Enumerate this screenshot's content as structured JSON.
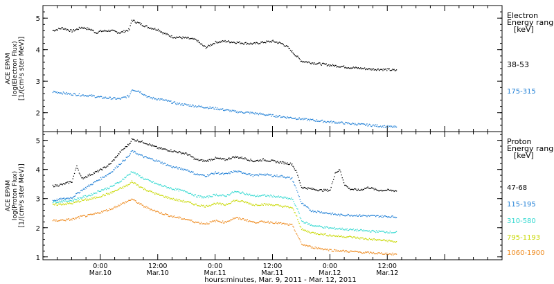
{
  "chart_data": [
    {
      "type": "line",
      "panel": "electron",
      "ylabel": [
        "ACE EPAM",
        "log(Electron Flux)",
        "[1/(cm²s ster MeV)]"
      ],
      "ylim": [
        1.4,
        5.4
      ],
      "yticks": [
        2,
        3,
        4,
        5
      ],
      "legend_title": [
        "Electron",
        "Energy range",
        "[keV]"
      ],
      "series": [
        {
          "name": "38-53",
          "color": "#000000",
          "points": [
            [
              -10,
              4.62
            ],
            [
              -8,
              4.7
            ],
            [
              -6,
              4.6
            ],
            [
              -4,
              4.72
            ],
            [
              -2,
              4.65
            ],
            [
              -1,
              4.55
            ],
            [
              0,
              4.6
            ],
            [
              2,
              4.62
            ],
            [
              4,
              4.55
            ],
            [
              6,
              4.65
            ],
            [
              6.5,
              4.95
            ],
            [
              8,
              4.85
            ],
            [
              10,
              4.72
            ],
            [
              12,
              4.65
            ],
            [
              13,
              4.55
            ],
            [
              15,
              4.42
            ],
            [
              18,
              4.38
            ],
            [
              20,
              4.32
            ],
            [
              21,
              4.18
            ],
            [
              22,
              4.08
            ],
            [
              24,
              4.25
            ],
            [
              26,
              4.28
            ],
            [
              28,
              4.25
            ],
            [
              30,
              4.22
            ],
            [
              32,
              4.2
            ],
            [
              34,
              4.25
            ],
            [
              36,
              4.28
            ],
            [
              38,
              4.2
            ],
            [
              39,
              4.1
            ],
            [
              40,
              3.95
            ],
            [
              42,
              3.65
            ],
            [
              44,
              3.6
            ],
            [
              48,
              3.52
            ],
            [
              52,
              3.45
            ],
            [
              56,
              3.4
            ],
            [
              60,
              3.38
            ],
            [
              62,
              3.35
            ]
          ]
        },
        {
          "name": "175-315",
          "color": "#1f7fd6",
          "points": [
            [
              -10,
              2.68
            ],
            [
              -6,
              2.6
            ],
            [
              -2,
              2.55
            ],
            [
              0,
              2.5
            ],
            [
              4,
              2.45
            ],
            [
              6,
              2.55
            ],
            [
              6.5,
              2.75
            ],
            [
              8,
              2.7
            ],
            [
              10,
              2.5
            ],
            [
              13,
              2.42
            ],
            [
              16,
              2.3
            ],
            [
              20,
              2.22
            ],
            [
              24,
              2.15
            ],
            [
              28,
              2.05
            ],
            [
              32,
              2.0
            ],
            [
              36,
              1.92
            ],
            [
              40,
              1.85
            ],
            [
              44,
              1.78
            ],
            [
              48,
              1.72
            ],
            [
              52,
              1.67
            ],
            [
              56,
              1.62
            ],
            [
              60,
              1.57
            ],
            [
              62,
              1.55
            ]
          ]
        }
      ]
    },
    {
      "type": "line",
      "panel": "proton",
      "ylabel": [
        "ACE EPAM",
        "log(Proton Flux)",
        "[1/(cm²s ster MeV)]"
      ],
      "ylim": [
        0.9,
        5.3
      ],
      "yticks": [
        1,
        2,
        3,
        4,
        5
      ],
      "legend_title": [
        "Proton",
        "Energy range",
        "[keV]"
      ],
      "xlabel": "hours:minutes, Mar. 9, 2011 - Mar. 12, 2011",
      "x_range_hours": [
        -12,
        84
      ],
      "xticks": [
        {
          "h": 0,
          "time": "0:00",
          "date": "Mar.10"
        },
        {
          "h": 12,
          "time": "12:00",
          "date": "Mar.10"
        },
        {
          "h": 24,
          "time": "0:00",
          "date": "Mar.11"
        },
        {
          "h": 36,
          "time": "12:00",
          "date": "Mar.11"
        },
        {
          "h": 48,
          "time": "0:00",
          "date": "Mar.12"
        },
        {
          "h": 60,
          "time": "12:00",
          "date": "Mar.12"
        }
      ],
      "series": [
        {
          "name": "47-68",
          "color": "#000000",
          "points": [
            [
              -10,
              3.45
            ],
            [
              -8,
              3.5
            ],
            [
              -6,
              3.6
            ],
            [
              -5,
              4.15
            ],
            [
              -4,
              3.7
            ],
            [
              -2,
              3.85
            ],
            [
              0,
              4.0
            ],
            [
              2,
              4.2
            ],
            [
              4,
              4.6
            ],
            [
              6,
              4.9
            ],
            [
              6.5,
              5.05
            ],
            [
              9,
              4.95
            ],
            [
              12,
              4.75
            ],
            [
              15,
              4.65
            ],
            [
              18,
              4.55
            ],
            [
              20,
              4.35
            ],
            [
              22,
              4.3
            ],
            [
              24,
              4.4
            ],
            [
              26,
              4.35
            ],
            [
              28,
              4.45
            ],
            [
              30,
              4.4
            ],
            [
              32,
              4.3
            ],
            [
              34,
              4.35
            ],
            [
              36,
              4.3
            ],
            [
              38,
              4.25
            ],
            [
              40,
              4.2
            ],
            [
              41,
              3.9
            ],
            [
              42,
              3.4
            ],
            [
              44,
              3.35
            ],
            [
              46,
              3.3
            ],
            [
              48,
              3.3
            ],
            [
              49,
              3.9
            ],
            [
              50,
              4.0
            ],
            [
              51,
              3.5
            ],
            [
              52,
              3.35
            ],
            [
              54,
              3.3
            ],
            [
              56,
              3.4
            ],
            [
              58,
              3.3
            ],
            [
              60,
              3.3
            ],
            [
              62,
              3.28
            ]
          ]
        },
        {
          "name": "115-195",
          "color": "#1f7fd6",
          "points": [
            [
              -10,
              2.95
            ],
            [
              -6,
              3.05
            ],
            [
              -4,
              3.3
            ],
            [
              -2,
              3.5
            ],
            [
              0,
              3.7
            ],
            [
              2,
              3.9
            ],
            [
              4,
              4.2
            ],
            [
              6,
              4.5
            ],
            [
              6.5,
              4.65
            ],
            [
              9,
              4.45
            ],
            [
              12,
              4.3
            ],
            [
              15,
              4.1
            ],
            [
              18,
              4.0
            ],
            [
              20,
              3.85
            ],
            [
              22,
              3.8
            ],
            [
              24,
              3.9
            ],
            [
              26,
              3.85
            ],
            [
              28,
              3.95
            ],
            [
              30,
              3.9
            ],
            [
              32,
              3.8
            ],
            [
              34,
              3.85
            ],
            [
              36,
              3.8
            ],
            [
              38,
              3.78
            ],
            [
              40,
              3.7
            ],
            [
              41,
              3.3
            ],
            [
              42,
              2.85
            ],
            [
              44,
              2.6
            ],
            [
              46,
              2.55
            ],
            [
              48,
              2.5
            ],
            [
              50,
              2.45
            ],
            [
              52,
              2.45
            ],
            [
              56,
              2.42
            ],
            [
              60,
              2.4
            ],
            [
              62,
              2.38
            ]
          ]
        },
        {
          "name": "310-580",
          "color": "#30d8d0",
          "points": [
            [
              -10,
              2.9
            ],
            [
              -6,
              2.95
            ],
            [
              -4,
              3.05
            ],
            [
              -2,
              3.15
            ],
            [
              0,
              3.3
            ],
            [
              2,
              3.4
            ],
            [
              4,
              3.6
            ],
            [
              6,
              3.85
            ],
            [
              6.5,
              3.95
            ],
            [
              9,
              3.7
            ],
            [
              12,
              3.5
            ],
            [
              15,
              3.35
            ],
            [
              18,
              3.25
            ],
            [
              20,
              3.1
            ],
            [
              22,
              3.05
            ],
            [
              24,
              3.15
            ],
            [
              26,
              3.1
            ],
            [
              28,
              3.25
            ],
            [
              30,
              3.2
            ],
            [
              32,
              3.1
            ],
            [
              34,
              3.12
            ],
            [
              36,
              3.1
            ],
            [
              38,
              3.05
            ],
            [
              40,
              3.0
            ],
            [
              41,
              2.7
            ],
            [
              42,
              2.25
            ],
            [
              44,
              2.1
            ],
            [
              46,
              2.05
            ],
            [
              48,
              2.0
            ],
            [
              50,
              1.98
            ],
            [
              52,
              1.95
            ],
            [
              56,
              1.9
            ],
            [
              60,
              1.87
            ],
            [
              62,
              1.85
            ]
          ]
        },
        {
          "name": "795-1193",
          "color": "#c8d800",
          "points": [
            [
              -10,
              2.8
            ],
            [
              -6,
              2.85
            ],
            [
              -4,
              2.95
            ],
            [
              -2,
              3.0
            ],
            [
              0,
              3.1
            ],
            [
              2,
              3.2
            ],
            [
              4,
              3.35
            ],
            [
              6,
              3.5
            ],
            [
              6.5,
              3.6
            ],
            [
              9,
              3.35
            ],
            [
              12,
              3.15
            ],
            [
              15,
              3.0
            ],
            [
              18,
              2.9
            ],
            [
              20,
              2.8
            ],
            [
              22,
              2.75
            ],
            [
              24,
              2.85
            ],
            [
              26,
              2.8
            ],
            [
              28,
              2.95
            ],
            [
              30,
              2.9
            ],
            [
              32,
              2.8
            ],
            [
              34,
              2.82
            ],
            [
              36,
              2.8
            ],
            [
              38,
              2.75
            ],
            [
              40,
              2.7
            ],
            [
              41,
              2.4
            ],
            [
              42,
              1.95
            ],
            [
              44,
              1.85
            ],
            [
              46,
              1.8
            ],
            [
              48,
              1.75
            ],
            [
              50,
              1.72
            ],
            [
              52,
              1.7
            ],
            [
              56,
              1.62
            ],
            [
              60,
              1.57
            ],
            [
              62,
              1.52
            ]
          ]
        },
        {
          "name": "1060-1900",
          "color": "#ee8a1e",
          "points": [
            [
              -10,
              2.25
            ],
            [
              -6,
              2.3
            ],
            [
              -4,
              2.4
            ],
            [
              -2,
              2.45
            ],
            [
              0,
              2.55
            ],
            [
              2,
              2.65
            ],
            [
              4,
              2.8
            ],
            [
              6,
              2.95
            ],
            [
              6.5,
              3.0
            ],
            [
              9,
              2.75
            ],
            [
              12,
              2.55
            ],
            [
              15,
              2.4
            ],
            [
              18,
              2.3
            ],
            [
              20,
              2.2
            ],
            [
              22,
              2.15
            ],
            [
              24,
              2.25
            ],
            [
              26,
              2.2
            ],
            [
              28,
              2.35
            ],
            [
              30,
              2.3
            ],
            [
              32,
              2.2
            ],
            [
              34,
              2.22
            ],
            [
              36,
              2.2
            ],
            [
              38,
              2.15
            ],
            [
              40,
              2.1
            ],
            [
              41,
              1.8
            ],
            [
              42,
              1.45
            ],
            [
              44,
              1.35
            ],
            [
              46,
              1.3
            ],
            [
              48,
              1.25
            ],
            [
              50,
              1.22
            ],
            [
              52,
              1.2
            ],
            [
              56,
              1.15
            ],
            [
              60,
              1.12
            ],
            [
              62,
              1.1
            ]
          ]
        }
      ]
    }
  ]
}
